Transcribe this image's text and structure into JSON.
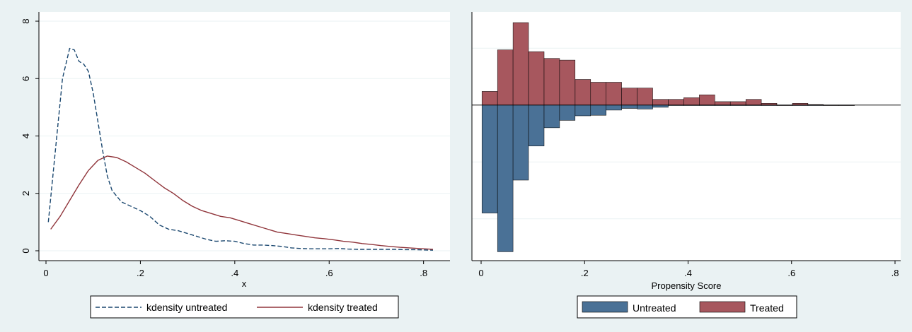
{
  "colors": {
    "background": "#eaf2f3",
    "plot_region": "#ffffff",
    "grid": "#eaf2f3",
    "untreated": "#1a476f",
    "treated": "#90353b",
    "untreated_bar": "#4a7196",
    "treated_bar": "#a7575e"
  },
  "chart_data": [
    {
      "type": "line",
      "xlabel": "x",
      "ylabel": "",
      "xlim": [
        0,
        0.82
      ],
      "ylim": [
        0,
        8
      ],
      "x_ticks": [
        0,
        0.2,
        0.4,
        0.6,
        0.8
      ],
      "x_tick_labels": [
        "0",
        ".2",
        ".4",
        ".6",
        ".8"
      ],
      "y_ticks": [
        0,
        2,
        4,
        6,
        8
      ],
      "y_tick_labels": [
        "0",
        "2",
        "4",
        "6",
        "8"
      ],
      "grid": true,
      "legend_position": "bottom",
      "series": [
        {
          "name": "kdensity untreated",
          "style": "dashed",
          "color": "#1a476f",
          "x": [
            0.005,
            0.02,
            0.035,
            0.05,
            0.06,
            0.07,
            0.08,
            0.09,
            0.1,
            0.11,
            0.12,
            0.13,
            0.14,
            0.16,
            0.18,
            0.2,
            0.22,
            0.24,
            0.26,
            0.28,
            0.3,
            0.32,
            0.34,
            0.36,
            0.38,
            0.4,
            0.42,
            0.44,
            0.46,
            0.48,
            0.5,
            0.52,
            0.54,
            0.56,
            0.58,
            0.6,
            0.62,
            0.64,
            0.66,
            0.68,
            0.7,
            0.72,
            0.74,
            0.76,
            0.78,
            0.8,
            0.82
          ],
          "y": [
            1.0,
            3.5,
            6.0,
            7.05,
            7.0,
            6.6,
            6.5,
            6.25,
            5.5,
            4.5,
            3.5,
            2.6,
            2.1,
            1.7,
            1.55,
            1.4,
            1.2,
            0.9,
            0.75,
            0.7,
            0.6,
            0.5,
            0.4,
            0.33,
            0.35,
            0.33,
            0.25,
            0.2,
            0.2,
            0.18,
            0.15,
            0.1,
            0.08,
            0.07,
            0.07,
            0.07,
            0.08,
            0.06,
            0.05,
            0.05,
            0.05,
            0.05,
            0.05,
            0.04,
            0.04,
            0.03,
            0.02
          ]
        },
        {
          "name": "kdensity treated",
          "style": "solid",
          "color": "#90353b",
          "x": [
            0.01,
            0.03,
            0.05,
            0.07,
            0.09,
            0.11,
            0.13,
            0.15,
            0.17,
            0.19,
            0.21,
            0.23,
            0.25,
            0.27,
            0.29,
            0.31,
            0.33,
            0.35,
            0.37,
            0.39,
            0.41,
            0.43,
            0.45,
            0.47,
            0.49,
            0.51,
            0.53,
            0.55,
            0.57,
            0.59,
            0.61,
            0.63,
            0.65,
            0.67,
            0.69,
            0.71,
            0.73,
            0.75,
            0.77,
            0.79,
            0.81,
            0.82
          ],
          "y": [
            0.75,
            1.2,
            1.75,
            2.3,
            2.8,
            3.15,
            3.3,
            3.25,
            3.1,
            2.9,
            2.7,
            2.45,
            2.2,
            2.0,
            1.75,
            1.55,
            1.4,
            1.3,
            1.2,
            1.15,
            1.05,
            0.95,
            0.85,
            0.75,
            0.65,
            0.6,
            0.55,
            0.5,
            0.45,
            0.42,
            0.38,
            0.33,
            0.3,
            0.25,
            0.22,
            0.18,
            0.15,
            0.12,
            0.1,
            0.08,
            0.06,
            0.05
          ]
        }
      ]
    },
    {
      "type": "bar",
      "xlabel": "Propensity Score",
      "ylabel": "",
      "xlim": [
        0,
        0.8
      ],
      "ylim": [
        -2.6,
        1.45
      ],
      "x_ticks": [
        0,
        0.2,
        0.4,
        0.6,
        0.8
      ],
      "x_tick_labels": [
        "0",
        ".2",
        ".4",
        ".6",
        ".8"
      ],
      "bar_width": 0.03,
      "grid": true,
      "legend_position": "bottom",
      "series": [
        {
          "name": "Untreated",
          "color": "#4a7196",
          "x": [
            0.0167,
            0.0467,
            0.0767,
            0.1067,
            0.1367,
            0.1667,
            0.1967,
            0.2267,
            0.2567,
            0.2867,
            0.3167,
            0.3467,
            0.3767,
            0.4067,
            0.4367,
            0.4667,
            0.4967,
            0.5267,
            0.5567,
            0.5867,
            0.6167,
            0.6467,
            0.6767,
            0.7067
          ],
          "values": [
            -1.9,
            -2.58,
            -1.32,
            -0.72,
            -0.4,
            -0.27,
            -0.19,
            -0.18,
            -0.09,
            -0.06,
            -0.07,
            -0.04,
            -0.01,
            -0.01,
            -0.01,
            -0.01,
            -0.01,
            -0.01,
            -0.01,
            -0.01,
            -0.01,
            -0.01,
            -0.01,
            -0.01
          ]
        },
        {
          "name": "Treated",
          "color": "#a7575e",
          "x": [
            0.0167,
            0.0467,
            0.0767,
            0.1067,
            0.1367,
            0.1667,
            0.1967,
            0.2267,
            0.2567,
            0.2867,
            0.3167,
            0.3467,
            0.3767,
            0.4067,
            0.4367,
            0.4667,
            0.4967,
            0.5267,
            0.5567,
            0.5867,
            0.6167,
            0.6467,
            0.6767,
            0.7067
          ],
          "values": [
            0.24,
            0.97,
            1.45,
            0.94,
            0.82,
            0.79,
            0.45,
            0.4,
            0.4,
            0.3,
            0.3,
            0.1,
            0.1,
            0.13,
            0.18,
            0.06,
            0.06,
            0.1,
            0.03,
            0.0,
            0.03,
            0.01,
            0.0,
            0.0
          ]
        }
      ]
    }
  ]
}
